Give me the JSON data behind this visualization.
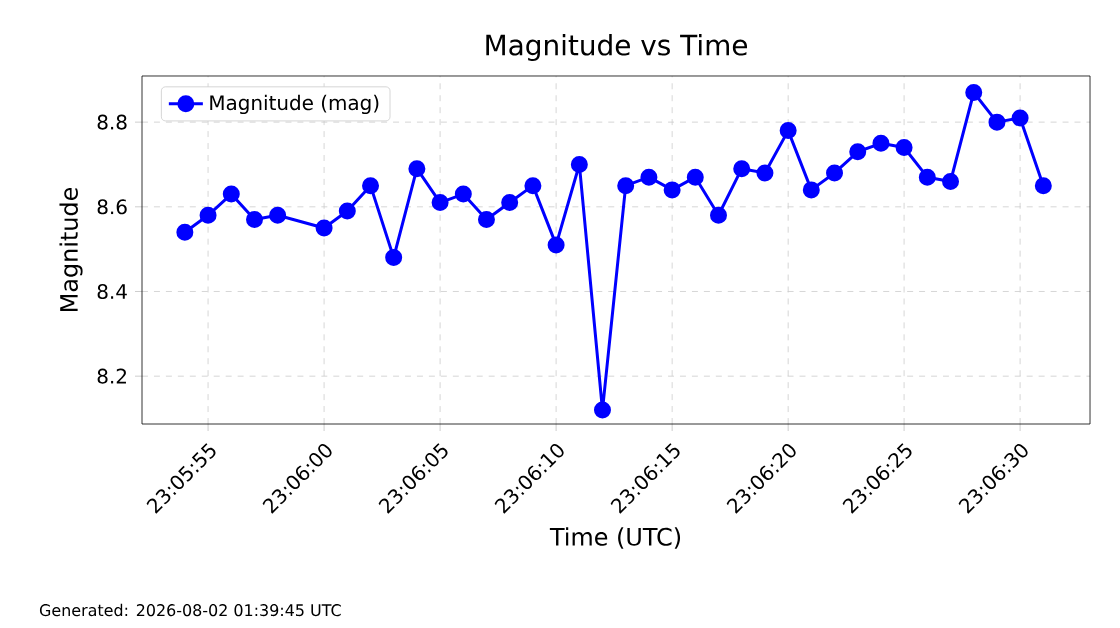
{
  "chart_data": {
    "type": "line",
    "title": "Magnitude vs Time",
    "xlabel": "Time (UTC)",
    "ylabel": "Magnitude",
    "x": [
      23.098333,
      23.098611,
      23.098889,
      23.099167,
      23.099444,
      23.1,
      23.100278,
      23.100556,
      23.100833,
      23.101111,
      23.101389,
      23.101667,
      23.101944,
      23.102222,
      23.1025,
      23.102778,
      23.103056,
      23.103333,
      23.103611,
      23.103889,
      23.104167,
      23.104444,
      23.104722,
      23.105,
      23.105278,
      23.105556,
      23.105833,
      23.106111,
      23.106389,
      23.106667,
      23.106944,
      23.107222,
      23.1075,
      23.107778,
      23.108056,
      23.108333,
      23.108611
    ],
    "series": [
      {
        "name": "Magnitude (mag)",
        "color": "#0000ff",
        "values": [
          8.54,
          8.58,
          8.63,
          8.57,
          8.58,
          8.55,
          8.59,
          8.65,
          8.48,
          8.69,
          8.61,
          8.63,
          8.57,
          8.61,
          8.65,
          8.51,
          8.7,
          8.12,
          8.65,
          8.67,
          8.64,
          8.67,
          8.58,
          8.69,
          8.68,
          8.78,
          8.64,
          8.68,
          8.73,
          8.75,
          8.74,
          8.67,
          8.66,
          8.87,
          8.8,
          8.81,
          8.65
        ]
      }
    ],
    "xlim": [
      23.09782,
      23.10917
    ],
    "ylim": [
      8.087,
      8.909
    ],
    "xticks": [
      {
        "value": 23.098611,
        "label": "23:05:55"
      },
      {
        "value": 23.1,
        "label": "23:06:00"
      },
      {
        "value": 23.101389,
        "label": "23:06:05"
      },
      {
        "value": 23.102778,
        "label": "23:06:10"
      },
      {
        "value": 23.104167,
        "label": "23:06:15"
      },
      {
        "value": 23.105556,
        "label": "23:06:20"
      },
      {
        "value": 23.106944,
        "label": "23:06:25"
      },
      {
        "value": 23.108333,
        "label": "23:06:30"
      }
    ],
    "yticks": [
      8.2,
      8.4,
      8.6,
      8.8
    ],
    "grid": true,
    "legend": "top left",
    "marker": "circle",
    "line_style": "solid",
    "annotations": [
      "Generated: 2026-08-02 01:39:45 UTC"
    ]
  }
}
